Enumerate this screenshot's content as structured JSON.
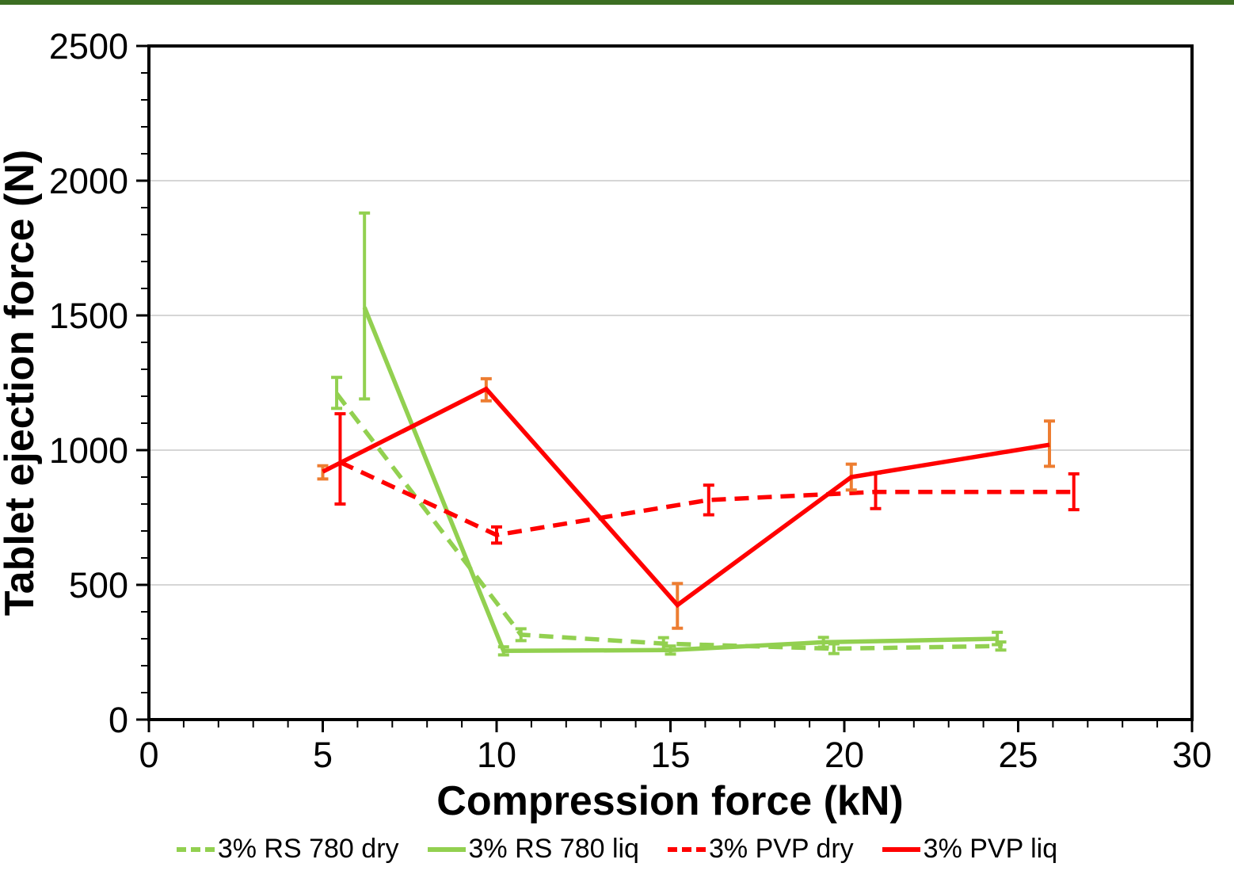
{
  "page": {
    "top_bar_color": "#3c6e22",
    "background_color": "#ffffff"
  },
  "chart_data": {
    "type": "line",
    "title": "",
    "xlabel": "Compression force (kN)",
    "ylabel": "Tablet ejection force (N)",
    "xlim": [
      0,
      30
    ],
    "ylim": [
      0,
      2500
    ],
    "x_major_ticks": [
      0,
      5,
      10,
      15,
      20,
      25,
      30
    ],
    "x_minor_step": 1,
    "y_major_ticks": [
      0,
      500,
      1000,
      1500,
      2000,
      2500
    ],
    "y_minor_step": 100,
    "grid": "horizontal-major",
    "gridline_color": "#c8c8c8",
    "frame_color": "#000000",
    "legend_position": "bottom-center",
    "series": [
      {
        "name": "3% RS 780 dry",
        "color": "#92d050",
        "error_color": "#92d050",
        "style": "dashed",
        "points": [
          {
            "x": 5.4,
            "y": 1210,
            "up": 60,
            "dn": 55
          },
          {
            "x": 10.7,
            "y": 315,
            "up": 22,
            "dn": 22
          },
          {
            "x": 14.8,
            "y": 282,
            "up": 22,
            "dn": 22
          },
          {
            "x": 19.7,
            "y": 263,
            "up": 18,
            "dn": 18
          },
          {
            "x": 24.5,
            "y": 273,
            "up": 15,
            "dn": 15
          }
        ]
      },
      {
        "name": "3% RS 780 liq",
        "color": "#92d050",
        "error_color": "#92d050",
        "style": "solid",
        "points": [
          {
            "x": 6.2,
            "y": 1530,
            "up": 350,
            "dn": 340
          },
          {
            "x": 10.2,
            "y": 255,
            "up": 15,
            "dn": 15
          },
          {
            "x": 15.0,
            "y": 258,
            "up": 15,
            "dn": 15
          },
          {
            "x": 19.4,
            "y": 287,
            "up": 18,
            "dn": 18
          },
          {
            "x": 24.4,
            "y": 300,
            "up": 24,
            "dn": 22
          }
        ]
      },
      {
        "name": "3% PVP dry",
        "color": "#ff0000",
        "error_color": "#ff0000",
        "style": "dashed",
        "points": [
          {
            "x": 5.5,
            "y": 955,
            "up": 180,
            "dn": 155
          },
          {
            "x": 10.0,
            "y": 685,
            "up": 30,
            "dn": 30
          },
          {
            "x": 16.1,
            "y": 815,
            "up": 55,
            "dn": 55
          },
          {
            "x": 20.9,
            "y": 845,
            "up": 70,
            "dn": 62
          },
          {
            "x": 26.6,
            "y": 845,
            "up": 67,
            "dn": 66
          }
        ]
      },
      {
        "name": "3% PVP liq",
        "color": "#ff0000",
        "error_color": "#ed7d31",
        "style": "solid",
        "points": [
          {
            "x": 5.0,
            "y": 920,
            "up": 22,
            "dn": 27
          },
          {
            "x": 9.7,
            "y": 1227,
            "up": 38,
            "dn": 44
          },
          {
            "x": 15.2,
            "y": 425,
            "up": 80,
            "dn": 86
          },
          {
            "x": 20.2,
            "y": 900,
            "up": 48,
            "dn": 48
          },
          {
            "x": 25.9,
            "y": 1020,
            "up": 88,
            "dn": 80
          }
        ]
      }
    ]
  }
}
